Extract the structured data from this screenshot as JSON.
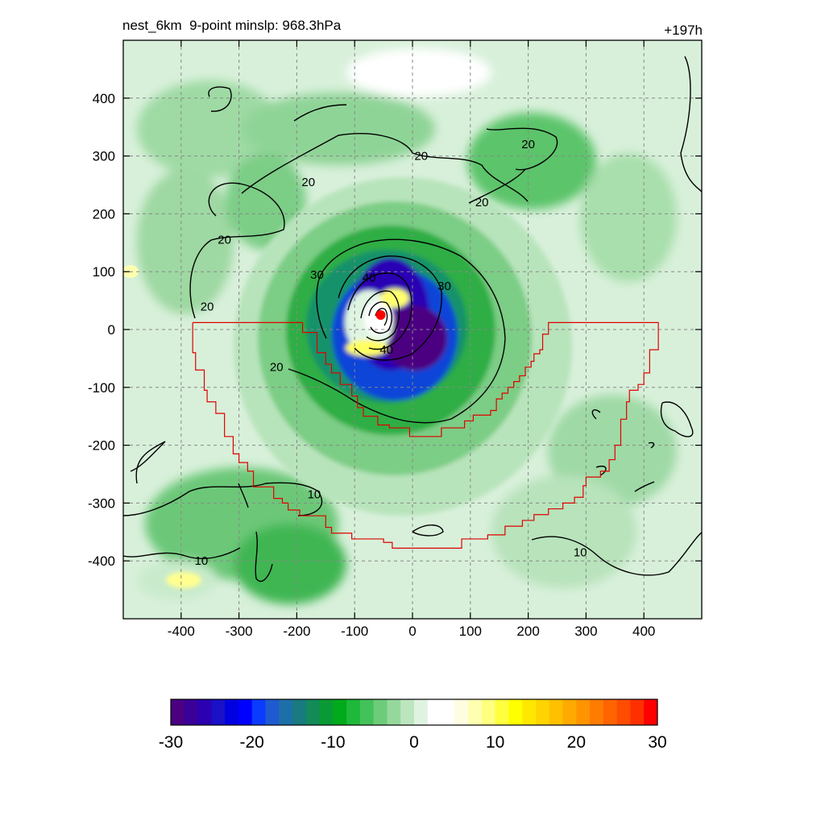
{
  "chart_data": {
    "type": "heatmap",
    "title": "nest_6km  9-point minslp: 968.3hPa",
    "subtitle": "+197h",
    "xlabel": "",
    "ylabel": "",
    "xlim": [
      -500,
      500
    ],
    "ylim": [
      -500,
      500
    ],
    "x_ticks": [
      -400,
      -300,
      -200,
      -100,
      0,
      100,
      200,
      300,
      400
    ],
    "y_ticks": [
      -400,
      -300,
      -200,
      -100,
      0,
      100,
      200,
      300,
      400
    ],
    "grid": true,
    "colorbar": {
      "min": -30,
      "max": 30,
      "ticks": [
        -30,
        -20,
        -10,
        0,
        10,
        20,
        30
      ],
      "colors": [
        "#4b0082",
        "#3a0099",
        "#2a00b0",
        "#1a10c8",
        "#0000e0",
        "#0000ff",
        "#0a3cff",
        "#1f5ad0",
        "#1d6fa8",
        "#197a80",
        "#138a58",
        "#0a9a35",
        "#00aa1a",
        "#1fb83a",
        "#44c25a",
        "#6ccc7a",
        "#96d89c",
        "#bde6bf",
        "#dff3e0",
        "#ffffff",
        "#ffffff",
        "#fffde0",
        "#ffffb0",
        "#ffff80",
        "#ffff40",
        "#ffff00",
        "#ffe800",
        "#ffd400",
        "#ffc000",
        "#ffaa00",
        "#ff9400",
        "#ff7c00",
        "#ff6400",
        "#ff4c00",
        "#ff3000",
        "#ff0000"
      ]
    },
    "storm_center": {
      "x": -55,
      "y": 25
    },
    "contour_labels": [
      {
        "text": "20",
        "x": 15,
        "y": 300
      },
      {
        "text": "20",
        "x": -180,
        "y": 255
      },
      {
        "text": "20",
        "x": 200,
        "y": 320
      },
      {
        "text": "20",
        "x": 120,
        "y": 220
      },
      {
        "text": "20",
        "x": -325,
        "y": 155
      },
      {
        "text": "20",
        "x": -355,
        "y": 40
      },
      {
        "text": "20",
        "x": -235,
        "y": -65
      },
      {
        "text": "30",
        "x": -165,
        "y": 95
      },
      {
        "text": "30",
        "x": 55,
        "y": 75
      },
      {
        "text": "40",
        "x": -75,
        "y": 90
      },
      {
        "text": "40",
        "x": -45,
        "y": -35
      },
      {
        "text": "10",
        "x": -170,
        "y": -285
      },
      {
        "text": "10",
        "x": -365,
        "y": -400
      },
      {
        "text": "10",
        "x": 290,
        "y": -385
      }
    ]
  }
}
